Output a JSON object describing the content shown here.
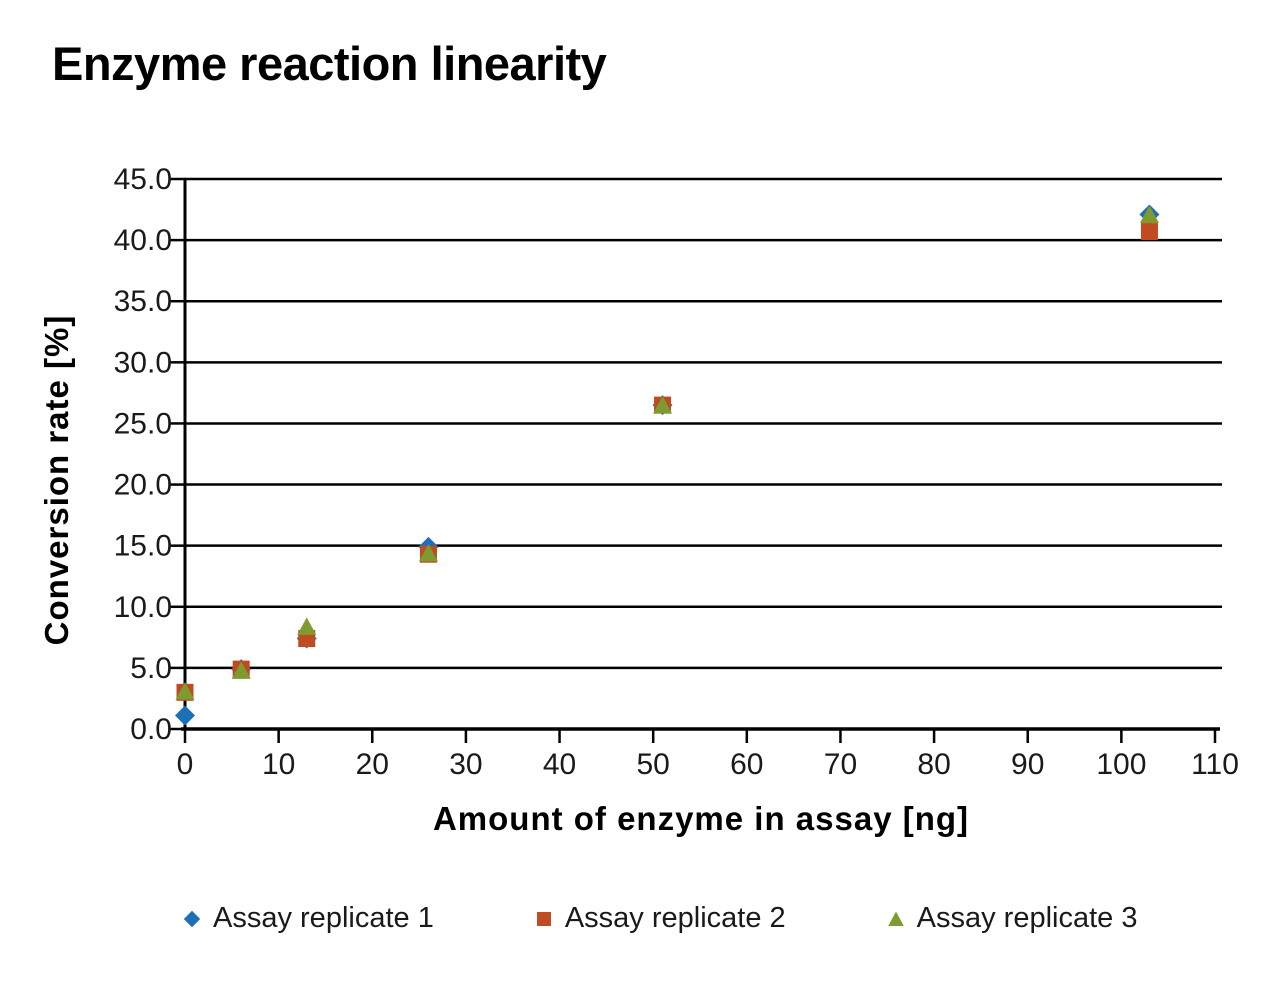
{
  "chart": {
    "title": "Enzyme reaction linearity"
  },
  "chart_data": {
    "type": "scatter",
    "title": "Enzyme reaction linearity",
    "xlabel": "Amount of enzyme in assay [ng]",
    "ylabel": "Conversion rate [%]",
    "xlim": [
      0,
      110
    ],
    "ylim": [
      0,
      45
    ],
    "xticks": [
      0,
      10,
      20,
      30,
      40,
      50,
      60,
      70,
      80,
      90,
      100,
      110
    ],
    "xtick_labels": [
      "0",
      "10",
      "20",
      "30",
      "40",
      "50",
      "60",
      "70",
      "80",
      "90",
      "100",
      "110"
    ],
    "yticks": [
      0,
      5,
      10,
      15,
      20,
      25,
      30,
      35,
      40,
      45
    ],
    "ytick_labels": [
      "0.0",
      "5.0",
      "10.0",
      "15.0",
      "20.0",
      "25.0",
      "30.0",
      "35.0",
      "40.0",
      "45.0"
    ],
    "grid": "horizontal",
    "legend_position": "bottom",
    "background_color": "#ffffff",
    "axis_color": "#000000",
    "x": [
      0,
      6,
      13,
      26,
      51,
      103
    ],
    "series": [
      {
        "name": "Assay replicate 1",
        "marker": "diamond",
        "color": "#1B70B7",
        "values": [
          1.1,
          4.9,
          7.4,
          14.9,
          26.5,
          42.1
        ]
      },
      {
        "name": "Assay replicate 2",
        "marker": "square",
        "color": "#C04A21",
        "values": [
          3.0,
          4.9,
          7.4,
          14.3,
          26.5,
          40.7
        ]
      },
      {
        "name": "Assay replicate 3",
        "marker": "triangle",
        "color": "#7F9B2F",
        "values": [
          3.1,
          4.8,
          8.4,
          14.4,
          26.5,
          42.1
        ]
      }
    ]
  }
}
